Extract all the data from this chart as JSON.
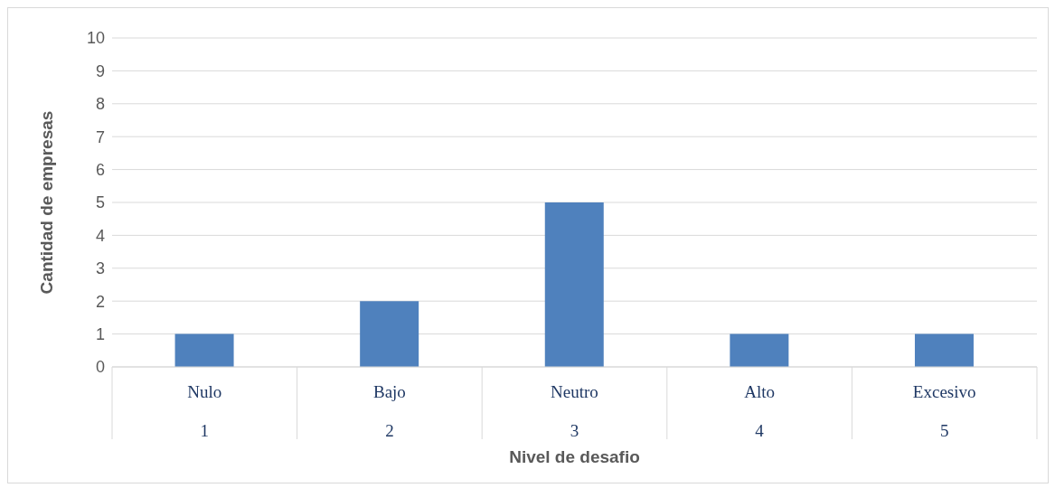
{
  "chart_data": {
    "type": "bar",
    "xlabel": "Nivel de desafio",
    "ylabel": "Cantidad de empresas",
    "categories": [
      "Nulo\n1",
      "Bajo\n2",
      "Neutro\n3",
      "Alto\n4",
      "Excesivo\n5"
    ],
    "values": [
      1,
      2,
      5,
      1,
      1
    ],
    "color": "#4f81bd",
    "ylim": [
      0,
      10
    ],
    "yticks": [
      0,
      1,
      2,
      3,
      4,
      5,
      6,
      7,
      8,
      9,
      10
    ],
    "grid": "y"
  }
}
